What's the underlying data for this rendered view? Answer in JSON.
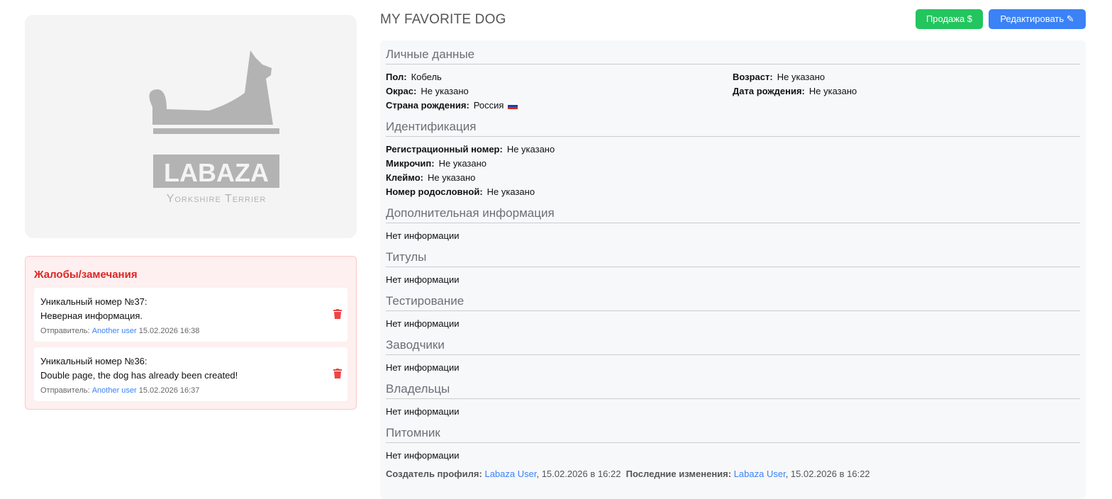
{
  "logo": {
    "brand": "LABAZA",
    "subtitle": "Yorkshire Terrier"
  },
  "complaints": {
    "title": "Жалобы/замечания",
    "items": [
      {
        "title": "Уникальный номер №37:",
        "text": "Неверная информация.",
        "sender_label": "Отправитель:",
        "sender": "Another user",
        "date": "15.02.2026 16:38"
      },
      {
        "title": "Уникальный номер №36:",
        "text": "Double page, the dog has already been created!",
        "sender_label": "Отправитель:",
        "sender": "Another user",
        "date": "15.02.2026 16:37"
      }
    ]
  },
  "header": {
    "title": "MY FAVORITE DOG",
    "sale": "Продажа $",
    "edit": "Редактировать"
  },
  "personal": {
    "title": "Личные данные",
    "sex_label": "Пол:",
    "sex": "Кобель",
    "age_label": "Возраст:",
    "age": "Не указано",
    "color_label": "Окрас:",
    "color": "Не указано",
    "dob_label": "Дата рождения:",
    "dob": "Не указано",
    "country_label": "Страна рождения:",
    "country": "Россия"
  },
  "ident": {
    "title": "Идентификация",
    "items": [
      {
        "label": "Регистрационный номер:",
        "value": "Не указано"
      },
      {
        "label": "Микрочип:",
        "value": "Не указано"
      },
      {
        "label": "Клеймо:",
        "value": "Не указано"
      },
      {
        "label": "Номер родословной:",
        "value": "Не указано"
      }
    ]
  },
  "sections": [
    {
      "title": "Дополнительная информация",
      "value": "Нет информации"
    },
    {
      "title": "Титулы",
      "value": "Нет информации"
    },
    {
      "title": "Тестирование",
      "value": "Нет информации"
    },
    {
      "title": "Заводчики",
      "value": "Нет информации"
    },
    {
      "title": "Владельцы",
      "value": "Нет информации"
    },
    {
      "title": "Питомник",
      "value": "Нет информации"
    }
  ],
  "footer": {
    "creator_label": "Создатель профиля:",
    "creator": "Labaza User",
    "created": ", 15.02.2026 в 16:22",
    "modified_label": "Последние изменения:",
    "modifier": "Labaza User",
    "modified": ", 15.02.2026 в 16:22"
  }
}
